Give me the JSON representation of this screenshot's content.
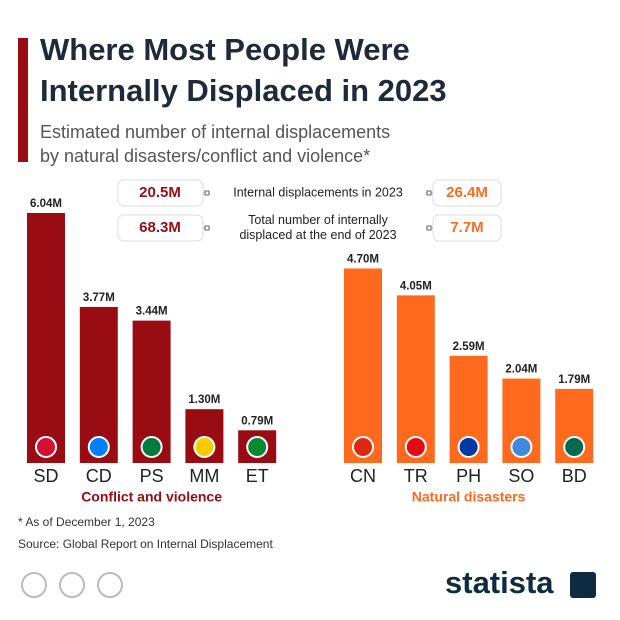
{
  "header": {
    "title": [
      "Where Most People Were",
      "Internally Displaced in 2023"
    ],
    "subtitle": [
      "Estimated number of internal displacements",
      "by natural disasters/conflict and violence*"
    ]
  },
  "stats": [
    {
      "label": [
        "Internal displacements in 2023"
      ],
      "conflict": "20.5M",
      "natural": "26.4M"
    },
    {
      "label": [
        "Total number of internally",
        "displaced at the end of 2023"
      ],
      "conflict": "68.3M",
      "natural": "7.7M"
    }
  ],
  "chart_data": [
    {
      "type": "bar",
      "title": "Conflict and violence",
      "categories": [
        "SD",
        "CD",
        "PS",
        "MM",
        "ET"
      ],
      "values": [
        6.04,
        3.77,
        3.44,
        1.3,
        0.79
      ],
      "value_labels": [
        "6.04M",
        "3.77M",
        "3.44M",
        "1.30M",
        "0.79M"
      ],
      "color": "#9a0c14"
    },
    {
      "type": "bar",
      "title": "Natural disasters",
      "categories": [
        "CN",
        "TR",
        "PH",
        "SO",
        "BD"
      ],
      "values": [
        4.7,
        4.05,
        2.59,
        2.04,
        1.79
      ],
      "value_labels": [
        "4.70M",
        "4.05M",
        "2.59M",
        "2.04M",
        "1.79M"
      ],
      "color": "#ff6a1f"
    }
  ],
  "footnote": "* As of December 1, 2023",
  "source": "Source: Global Report on Internal Displacement",
  "logo": "statista"
}
